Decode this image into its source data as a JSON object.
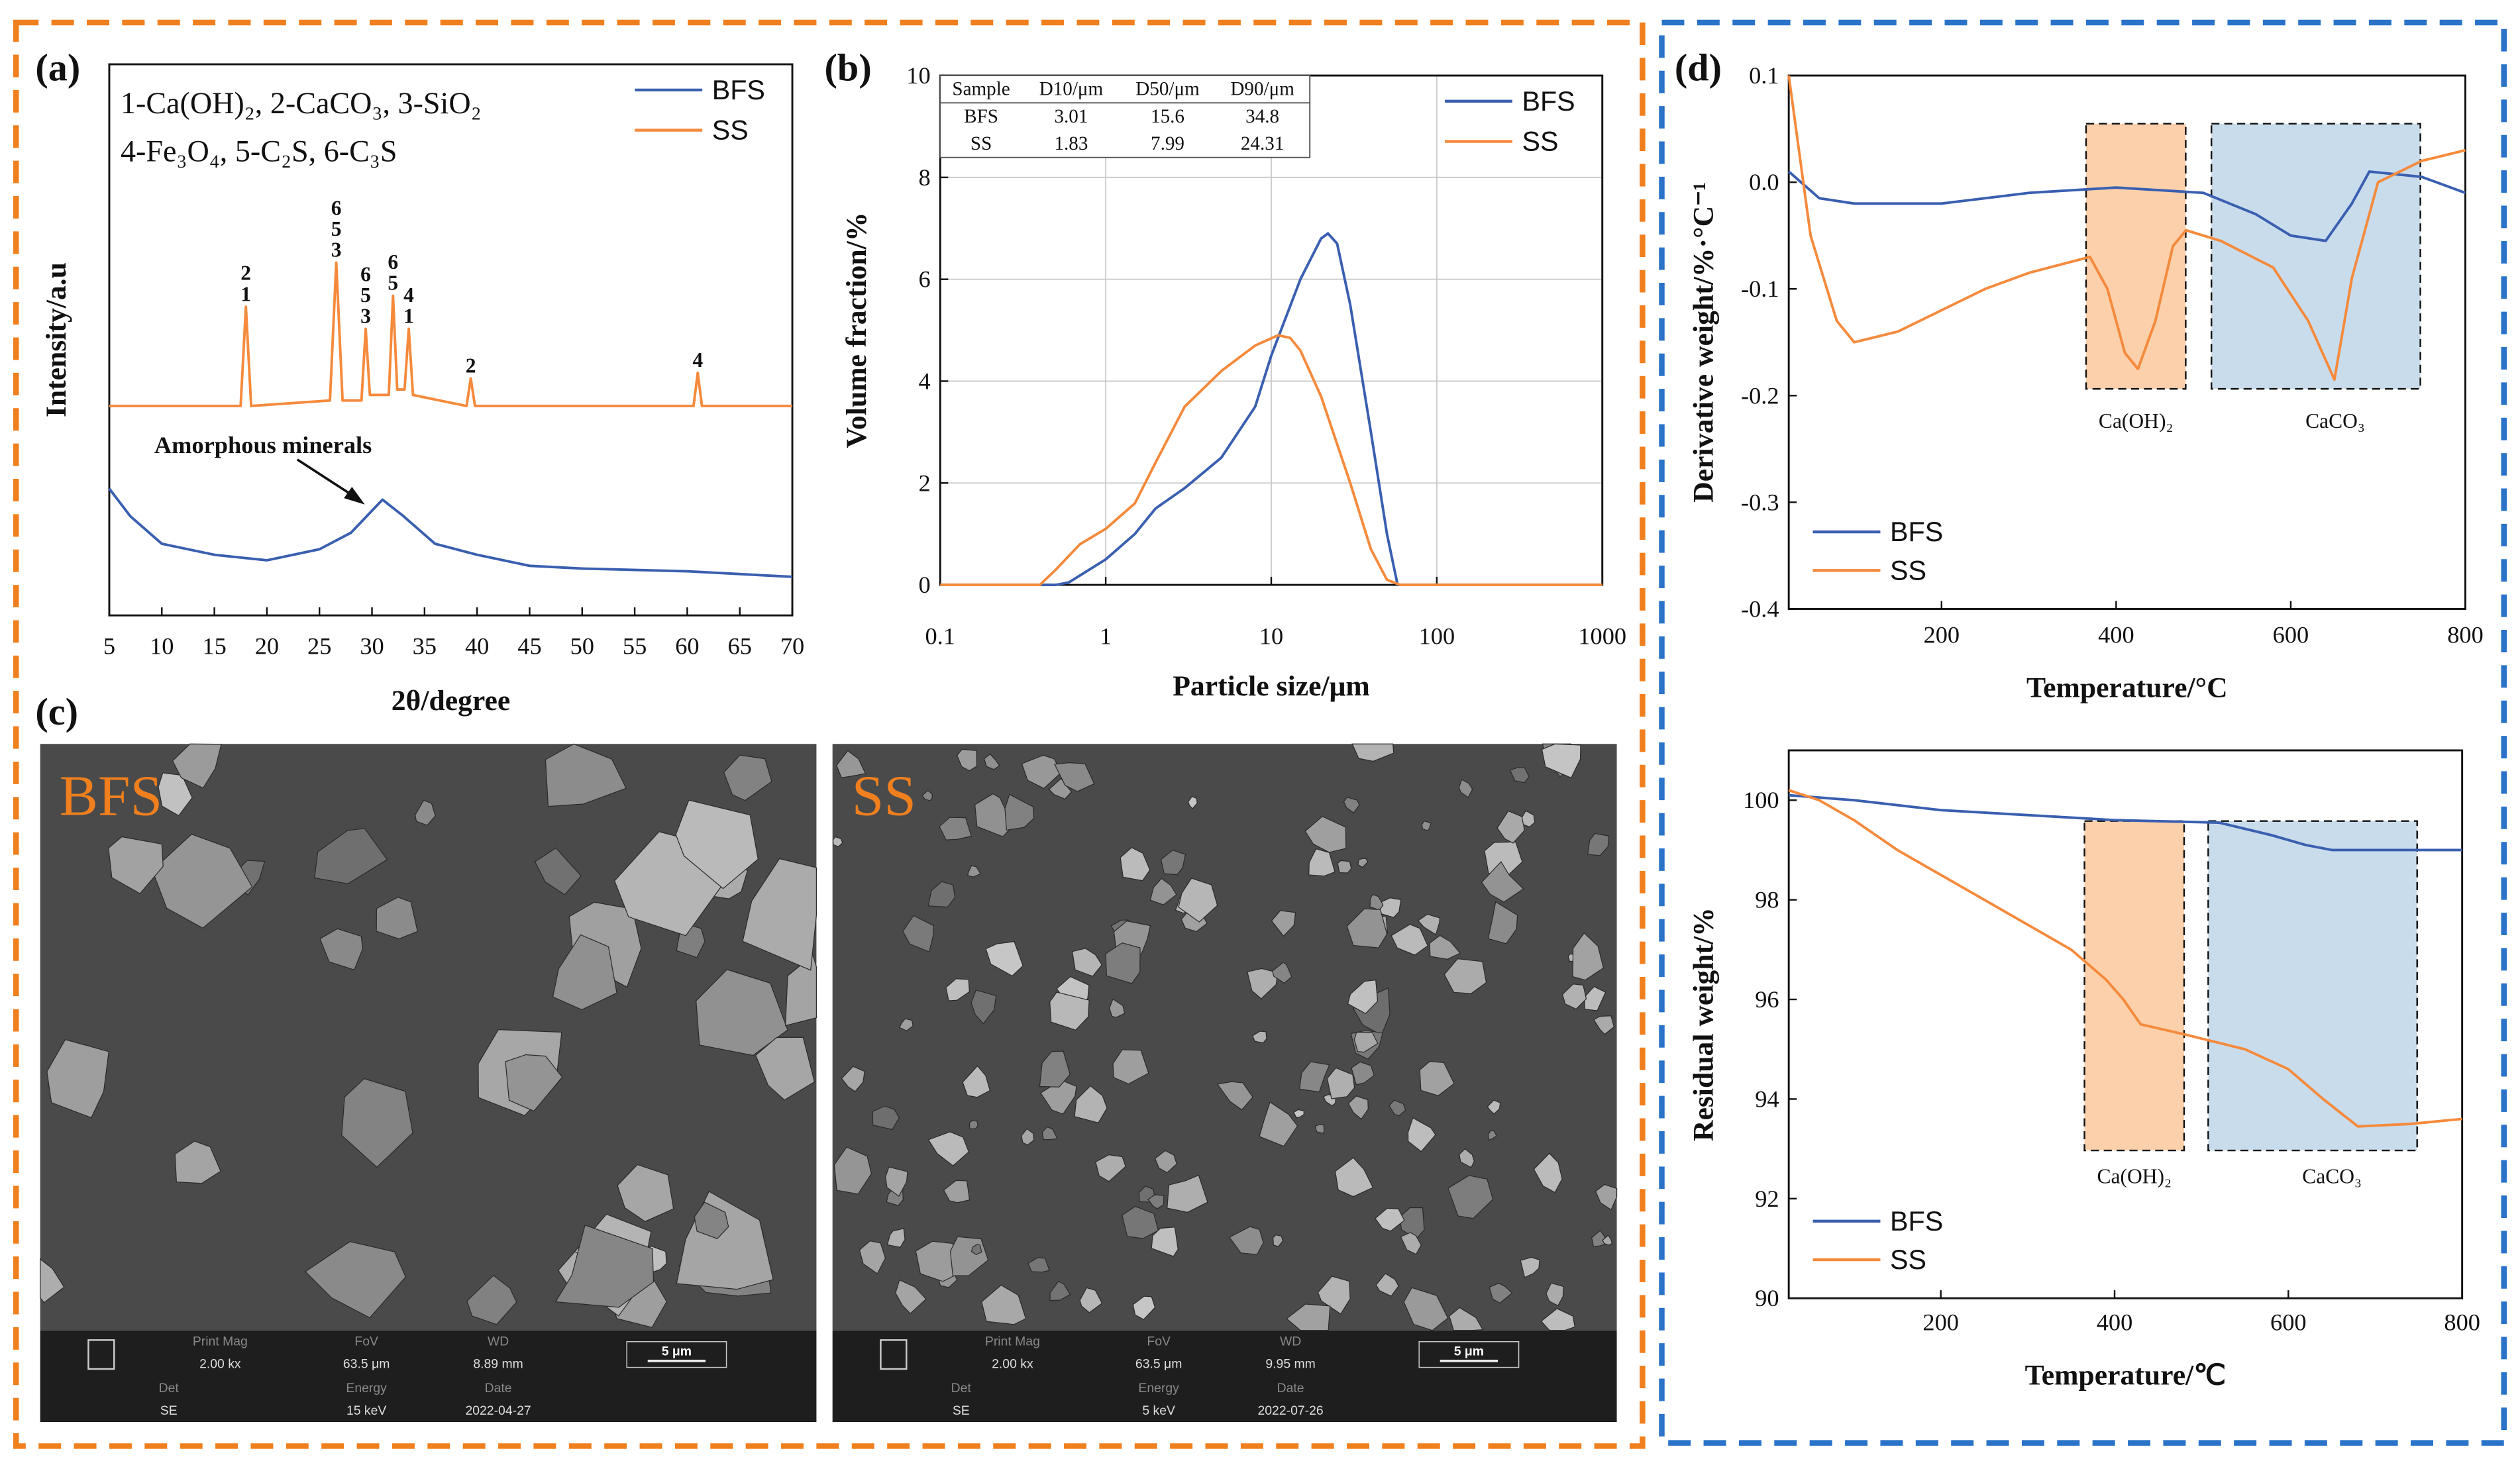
{
  "chart_data": [
    {
      "type": "line",
      "panel_label": "(a)",
      "xlabel": "2θ/degree",
      "ylabel": "Intensity/a.u",
      "xlim": [
        5,
        70
      ],
      "xticks": [
        5,
        10,
        15,
        20,
        25,
        30,
        35,
        40,
        45,
        50,
        55,
        60,
        65,
        70
      ],
      "ylim": [
        0,
        100
      ],
      "legend": "upper right",
      "phase_key": [
        "1-Ca(OH)₂, 2-CaCO₃, 3-SiO₂",
        "4-Fe₃O₄, 5-C₂S, 6-C₃S"
      ],
      "annotation": "Amorphous minerals",
      "series": [
        {
          "name": "BFS",
          "color": "#3a5fb0",
          "x": [
            5,
            7,
            10,
            15,
            20,
            25,
            28,
            31,
            33,
            36,
            40,
            45,
            50,
            60,
            70
          ],
          "values": [
            23,
            18,
            13,
            11,
            10,
            12,
            15,
            21,
            18,
            13,
            11,
            9,
            8.5,
            8,
            7
          ]
        },
        {
          "name": "SS",
          "color": "#f58a3c",
          "x": [
            5,
            17.5,
            18,
            18.5,
            26,
            26.6,
            27.2,
            29,
            29.4,
            29.8,
            31.6,
            32,
            32.4,
            33.1,
            33.5,
            33.9,
            39,
            39.4,
            39.8,
            60.6,
            61,
            61.4,
            70
          ],
          "values": [
            38,
            38,
            56,
            38,
            39,
            64,
            39,
            39,
            52,
            40,
            40,
            58,
            41,
            41,
            52,
            40,
            38,
            43,
            38,
            38,
            44,
            38,
            38
          ]
        }
      ],
      "peak_labels": [
        {
          "x": 18,
          "label": [
            "2",
            "1"
          ]
        },
        {
          "x": 26.6,
          "label": [
            "6",
            "5",
            "3"
          ]
        },
        {
          "x": 29.4,
          "label": [
            "6",
            "5",
            "3"
          ]
        },
        {
          "x": 32,
          "label": [
            "6",
            "5"
          ]
        },
        {
          "x": 33.5,
          "label": [
            "4",
            "1"
          ]
        },
        {
          "x": 39.4,
          "label": [
            "2"
          ]
        },
        {
          "x": 61,
          "label": [
            "4"
          ]
        }
      ]
    },
    {
      "type": "line",
      "panel_label": "(b)",
      "xlabel": "Particle size/μm",
      "ylabel": "Volume fraction/%",
      "log_x": true,
      "grid": true,
      "xlim": [
        0.1,
        1000
      ],
      "xticks": [
        0.1,
        1,
        10,
        100,
        1000
      ],
      "ylim": [
        0,
        10
      ],
      "yticks": [
        0,
        2,
        4,
        6,
        8,
        10
      ],
      "legend": "upper right",
      "table": {
        "header": [
          "Sample",
          "D10/μm",
          "D50/μm",
          "D90/μm"
        ],
        "rows": [
          [
            "BFS",
            3.01,
            15.6,
            34.8
          ],
          [
            "SS",
            1.83,
            7.99,
            24.31
          ]
        ]
      },
      "series": [
        {
          "name": "BFS",
          "color": "#3a5fb0",
          "x": [
            0.1,
            0.5,
            0.6,
            1,
            1.5,
            2,
            3,
            5,
            8,
            10,
            15,
            20,
            22,
            25,
            30,
            40,
            50,
            58,
            1000
          ],
          "values": [
            0,
            0,
            0.05,
            0.5,
            1.0,
            1.5,
            1.9,
            2.5,
            3.5,
            4.5,
            6.0,
            6.8,
            6.9,
            6.7,
            5.5,
            3,
            1,
            0,
            0
          ]
        },
        {
          "name": "SS",
          "color": "#f58a3c",
          "x": [
            0.1,
            0.4,
            0.5,
            0.7,
            1,
            1.5,
            2,
            3,
            5,
            8,
            11,
            13,
            15,
            20,
            30,
            40,
            50,
            60,
            1000
          ],
          "values": [
            0,
            0,
            0.3,
            0.8,
            1.1,
            1.6,
            2.4,
            3.5,
            4.2,
            4.7,
            4.9,
            4.85,
            4.6,
            3.7,
            2,
            0.7,
            0.1,
            0,
            0
          ]
        }
      ]
    },
    {
      "type": "line",
      "panel_label": "(d)",
      "xlabel": "Temperature/°C",
      "ylabel": "Derivative weight/%·°C⁻¹",
      "xlim": [
        25,
        800
      ],
      "xticks": [
        200,
        400,
        600,
        800
      ],
      "ylim": [
        -0.4,
        0.1
      ],
      "yticks": [
        -0.4,
        -0.3,
        -0.2,
        -0.1,
        {
          "value": 0,
          "label": "0.0"
        },
        0.1
      ],
      "legend": "lower left",
      "region_labels": [
        "Ca(OH)₂",
        "CaCO₃"
      ],
      "series": [
        {
          "name": "BFS",
          "color": "#3a5fb0",
          "x": [
            25,
            60,
            100,
            200,
            300,
            400,
            500,
            560,
            600,
            640,
            670,
            690,
            750,
            800
          ],
          "values": [
            0.01,
            -0.015,
            -0.02,
            -0.02,
            -0.01,
            -0.005,
            -0.01,
            -0.03,
            -0.05,
            -0.055,
            -0.02,
            0.01,
            0.005,
            -0.01
          ]
        },
        {
          "name": "SS",
          "color": "#f58a3c",
          "x": [
            25,
            50,
            80,
            100,
            150,
            200,
            250,
            300,
            370,
            390,
            410,
            425,
            445,
            465,
            480,
            520,
            580,
            620,
            650,
            670,
            700,
            750,
            800
          ],
          "values": [
            0.1,
            -0.05,
            -0.13,
            -0.15,
            -0.14,
            -0.12,
            -0.1,
            -0.085,
            -0.07,
            -0.1,
            -0.16,
            -0.175,
            -0.13,
            -0.06,
            -0.045,
            -0.055,
            -0.08,
            -0.13,
            -0.185,
            -0.09,
            0.0,
            0.02,
            0.03
          ]
        }
      ]
    },
    {
      "type": "line",
      "xlabel": "Temperature/℃",
      "ylabel": "Residual weight/%",
      "xlim": [
        25,
        800
      ],
      "xticks": [
        200,
        400,
        600,
        800
      ],
      "ylim": [
        90,
        101
      ],
      "yticks": [
        90,
        92,
        94,
        96,
        98,
        100
      ],
      "legend": "lower left",
      "region_labels": [
        "Ca(OH)₂",
        "CaCO₃"
      ],
      "series": [
        {
          "name": "BFS",
          "color": "#3a5fb0",
          "x": [
            25,
            100,
            200,
            300,
            400,
            520,
            580,
            620,
            650,
            700,
            800
          ],
          "values": [
            100.1,
            100.0,
            99.8,
            99.7,
            99.6,
            99.55,
            99.3,
            99.1,
            99.0,
            99.0,
            99.0
          ]
        },
        {
          "name": "SS",
          "color": "#f58a3c",
          "x": [
            25,
            60,
            100,
            150,
            200,
            250,
            300,
            350,
            390,
            410,
            430,
            480,
            550,
            600,
            640,
            680,
            740,
            800
          ],
          "values": [
            100.2,
            100.0,
            99.6,
            99.0,
            98.5,
            98.0,
            97.5,
            97.0,
            96.4,
            96.0,
            95.5,
            95.3,
            95.0,
            94.6,
            94.0,
            93.45,
            93.5,
            93.6
          ]
        }
      ]
    }
  ],
  "sem_images": {
    "panel_label": "(c)",
    "images": [
      {
        "label": "BFS",
        "scale_bar": "5 μm",
        "fields": [
          {
            "name": "Print Mag",
            "value": "2.00 kx"
          },
          {
            "name": "FoV",
            "value": "63.5 μm"
          },
          {
            "name": "WD",
            "value": "8.89 mm"
          },
          {
            "name": "Det",
            "value": "SE"
          },
          {
            "name": "Energy",
            "value": "15 keV"
          },
          {
            "name": "Date",
            "value": "2022-04-27"
          }
        ]
      },
      {
        "label": "SS",
        "scale_bar": "5 μm",
        "fields": [
          {
            "name": "Print Mag",
            "value": "2.00 kx"
          },
          {
            "name": "FoV",
            "value": "63.5 μm"
          },
          {
            "name": "WD",
            "value": "9.95 mm"
          },
          {
            "name": "Det",
            "value": "SE"
          },
          {
            "name": "Energy",
            "value": "5 keV"
          },
          {
            "name": "Date",
            "value": "2022-07-26"
          }
        ]
      }
    ]
  }
}
